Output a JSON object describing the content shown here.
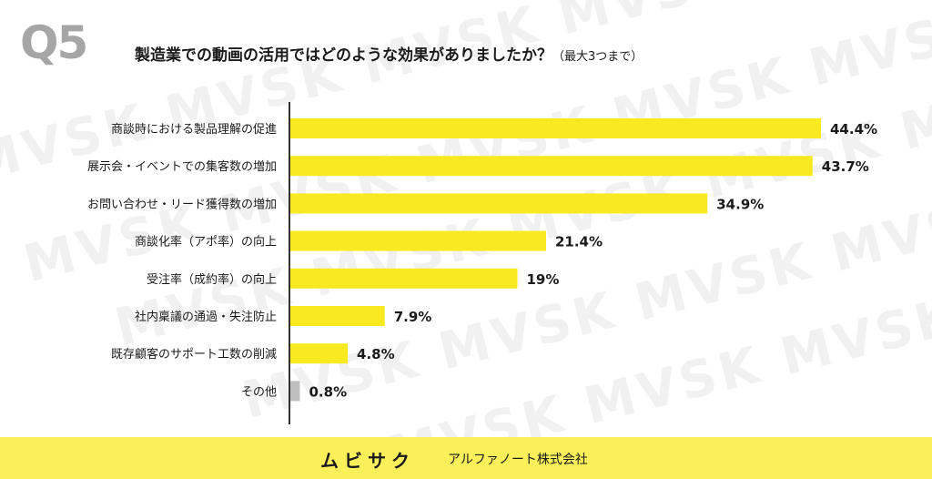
{
  "watermark": "MVSK MVSK MVSK MVSK MVSK MVSK",
  "question": {
    "number": "Q5",
    "text": "製造業での動画の活用ではどのような効果がありましたか？",
    "note": "（最大3つまで）"
  },
  "chart_data": {
    "type": "bar",
    "orientation": "horizontal",
    "categories": [
      "商談時における製品理解の促進",
      "展示会・イベントでの集客数の増加",
      "お問い合わせ・リード獲得数の増加",
      "商談化率（アポ率）の向上",
      "受注率（成約率）の向上",
      "社内稟議の通過・失注防止",
      "既存顧客のサポート工数の削減",
      "その他"
    ],
    "values": [
      44.4,
      43.7,
      34.9,
      21.4,
      19,
      7.9,
      4.8,
      0.8
    ],
    "value_labels": [
      "44.4%",
      "43.7%",
      "34.9%",
      "21.4%",
      "19%",
      "7.9%",
      "4.8%",
      "0.8%"
    ],
    "xlim": [
      0,
      44.4
    ],
    "colors": {
      "bar": "#f9e921",
      "other_bar": "#bfbfbf",
      "axis": "#333333"
    },
    "grid": false,
    "legend": "none"
  },
  "footer": {
    "logo": "ムビサク",
    "company": "アルファノート株式会社",
    "background": "#fcf05a"
  }
}
